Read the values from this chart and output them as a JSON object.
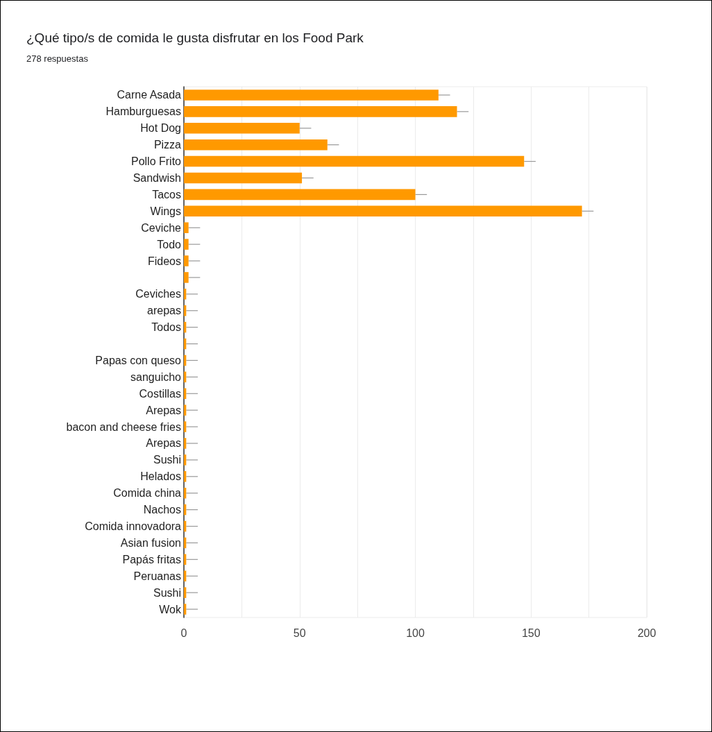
{
  "chart_data": {
    "type": "bar",
    "orientation": "horizontal",
    "title": "¿Qué tipo/s de comida le gusta disfrutar en los Food Park",
    "subtitle": "278 respuestas",
    "categories": [
      "Carne Asada",
      "Hamburguesas",
      "Hot Dog",
      "Pizza",
      "Pollo Frito",
      "Sandwish",
      "Tacos",
      "Wings",
      "Ceviche",
      "Todo",
      "Fideos",
      null,
      "Ceviches",
      "arepas",
      "Todos",
      null,
      "Papas con queso",
      "sanguicho",
      "Costillas",
      "Arepas",
      "bacon and cheese fries",
      "Arepas",
      "Sushi",
      "Helados",
      "Comida china",
      "Nachos",
      "Comida innovadora",
      "Asian fusion",
      "Papás fritas",
      "Peruanas",
      "Sushi",
      "Wok"
    ],
    "values": [
      110,
      118,
      50,
      62,
      147,
      51,
      100,
      172,
      2,
      2,
      2,
      2,
      1,
      1,
      1,
      1,
      1,
      1,
      1,
      1,
      1,
      1,
      1,
      1,
      1,
      1,
      1,
      1,
      1,
      1,
      1,
      1
    ],
    "errors": [
      [
        110,
        115
      ],
      [
        118,
        123
      ],
      [
        50,
        55
      ],
      [
        62,
        67
      ],
      [
        147,
        152
      ],
      [
        51,
        56
      ],
      [
        100,
        105
      ],
      [
        172,
        177
      ],
      [
        2,
        7
      ],
      [
        2,
        7
      ],
      [
        2,
        7
      ],
      [
        2,
        7
      ],
      [
        1,
        6
      ],
      [
        1,
        6
      ],
      [
        1,
        6
      ],
      [
        1,
        6
      ],
      [
        1,
        6
      ],
      [
        1,
        6
      ],
      [
        1,
        6
      ],
      [
        1,
        6
      ],
      [
        1,
        6
      ],
      [
        1,
        6
      ],
      [
        1,
        6
      ],
      [
        1,
        6
      ],
      [
        1,
        6
      ],
      [
        1,
        6
      ],
      [
        1,
        6
      ],
      [
        1,
        6
      ],
      [
        1,
        6
      ],
      [
        1,
        6
      ],
      [
        1,
        6
      ],
      [
        1,
        6
      ]
    ],
    "color": "#ff9900",
    "xlim": [
      0,
      200
    ],
    "xticks": [
      0,
      {
        "value": 25,
        "label": null
      },
      50,
      {
        "value": 75,
        "label": null
      },
      100,
      {
        "value": 125,
        "label": null
      },
      150,
      {
        "value": 175,
        "label": null
      },
      200
    ],
    "grid": "x"
  }
}
